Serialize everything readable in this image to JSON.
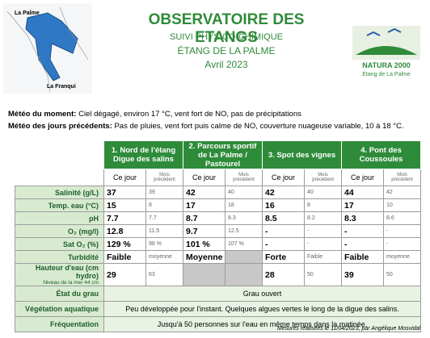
{
  "header": {
    "title": "OBSERVATOIRE DES ETANGS",
    "subtitle": "SUIVI PHYSICO-CHIMIQUE",
    "lagoon": "ÉTANG DE LA PALME",
    "date": "Avril 2023",
    "map_labels": [
      "La Palme",
      "La Franqui"
    ],
    "logo": {
      "name": "NATURA 2000",
      "site": "Etang de La Palme"
    }
  },
  "weather": [
    {
      "label": "Météo du moment:",
      "text": "Ciel dégagé, environ 17 °C, vent fort de NO, pas de précipitations"
    },
    {
      "label": "Météo des jours précédents:",
      "text": "Pas de pluies, vent fort puis calme de NO, couverture nuageuse variable, 10 à 18 °C."
    }
  ],
  "table": {
    "stations": [
      "1. Nord de l'étang Digue des salins",
      "2. Parcours sportif de La Palme / Pastourel",
      "3. Spot des vignes",
      "4. Pont des Coussoules"
    ],
    "columns": [
      "Ce jour",
      "Mois précédent"
    ],
    "rows": [
      {
        "label": "Salinité (g/L)",
        "values": [
          "37",
          "39",
          "42",
          "40",
          "42",
          "40",
          "44",
          "42"
        ]
      },
      {
        "label": "Temp. eau (°C)",
        "values": [
          "15",
          "8",
          "17",
          "18",
          "16",
          "8",
          "17",
          "10"
        ]
      },
      {
        "label": "pH",
        "values": [
          "7.7",
          "7.7",
          "8.7",
          "8.3",
          "8.5",
          "8.2",
          "8.3",
          "8.6"
        ]
      },
      {
        "label": "O₂ (mg/l)",
        "values": [
          "12.8",
          "11.5",
          "9.7",
          "12.5",
          "-",
          "-",
          "-",
          "-"
        ]
      },
      {
        "label": "Sat O₂ (%)",
        "values": [
          "129 %",
          "98 %",
          "101 %",
          "107 %",
          "-",
          "-",
          "-",
          "-"
        ]
      },
      {
        "label": "Turbidité",
        "values": [
          "Faible",
          "moyenne",
          "Moyenne",
          null,
          "Forte",
          "Faible",
          "Faible",
          "moyenne"
        ]
      },
      {
        "label": "Hauteur d'eau (cm hydro)",
        "sublabel": "Niveau de la mer 44 cm",
        "values": [
          "29",
          "63",
          null,
          null,
          "28",
          "50",
          "39",
          "50"
        ]
      }
    ],
    "notes": [
      {
        "label": "État du grau",
        "text": "Grau ouvert"
      },
      {
        "label": "Végétation aquatique",
        "text": "Peu développée pour l'instant. Quelques algues vertes le long de la digue des salins."
      },
      {
        "label": "Fréquentation",
        "text": "Jusqu'à 50 personnes sur l'eau en même temps dans la matinée."
      }
    ]
  },
  "footer": "Mesures réalisées le 11/04/2023, par Angélique Mosvidal"
}
